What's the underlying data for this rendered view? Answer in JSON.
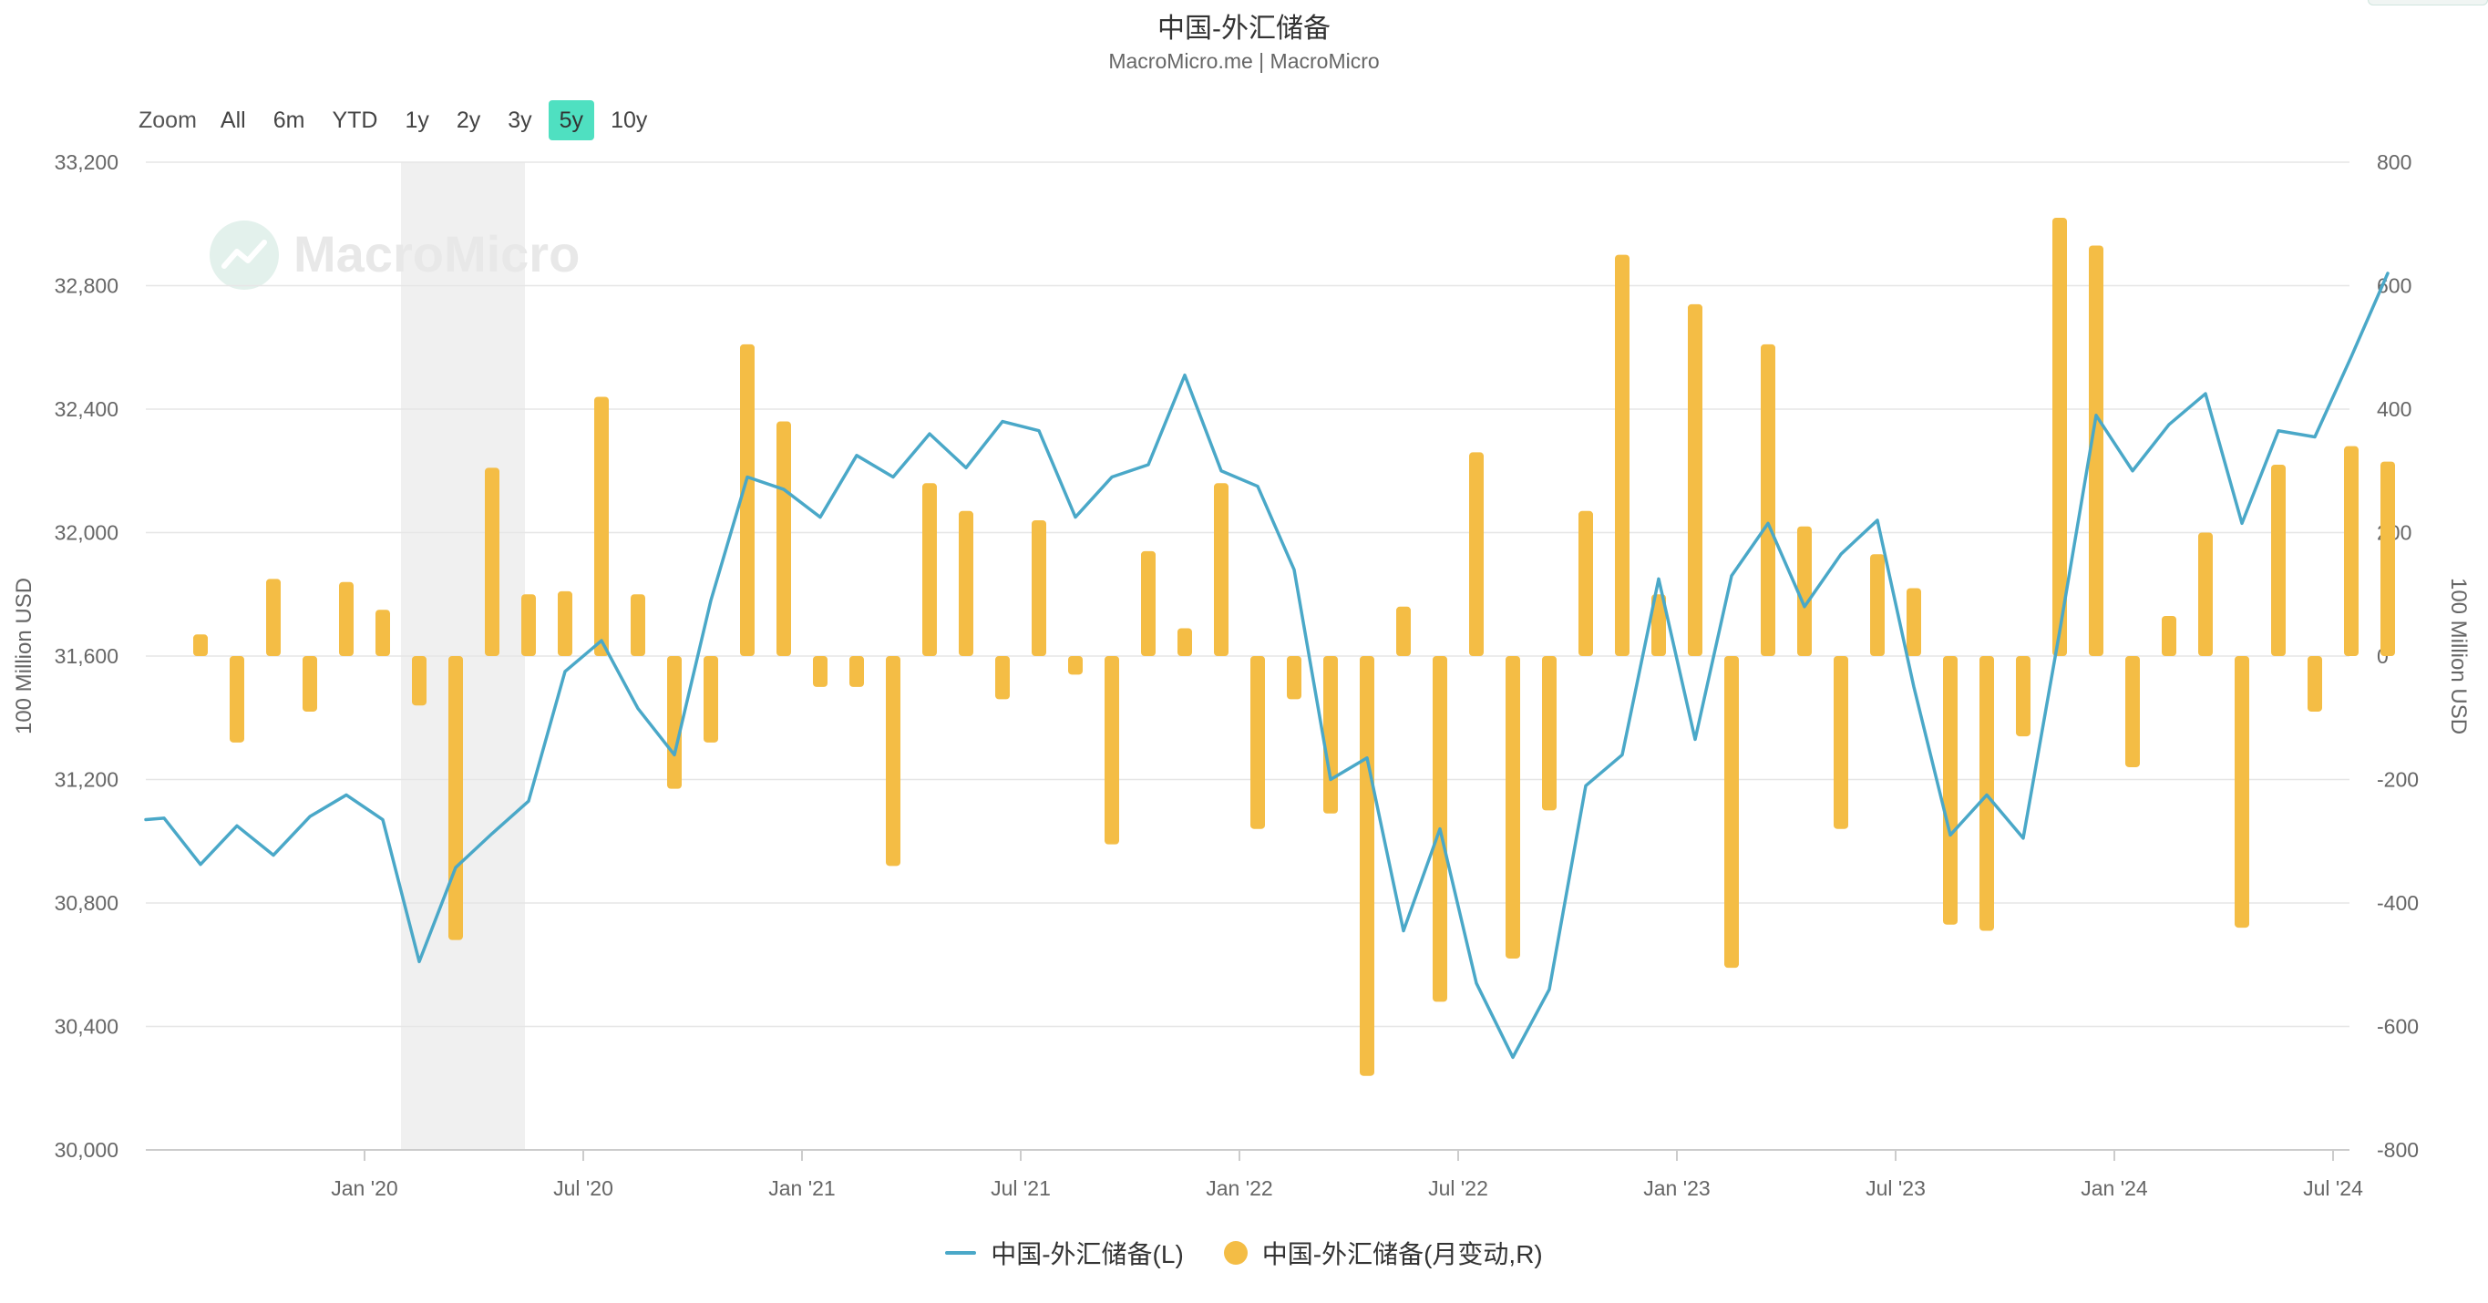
{
  "title": "中国-外汇储备",
  "subtitle": "MacroMicro.me | MacroMicro",
  "watermark": "MacroMicro",
  "range_selector": {
    "label": "Zoom",
    "options": [
      "All",
      "6m",
      "YTD",
      "1y",
      "2y",
      "3y",
      "5y",
      "10y"
    ],
    "active": "5y"
  },
  "colors": {
    "line": "#4aa8c8",
    "bar": "#f4bd45",
    "band": "#f0f0f0",
    "grid": "#e6e6e6",
    "active_range": "#4fe0c1"
  },
  "legend": [
    {
      "label": "中国-外汇储备(L)",
      "marker": "line",
      "color": "#4aa8c8"
    },
    {
      "label": "中国-外汇储备(月变动,R)",
      "marker": "dot",
      "color": "#f4bd45"
    }
  ],
  "chart_data": {
    "type": "bar+line",
    "x_start": "2019-07",
    "x_tick_labels": [
      "Jan '20",
      "Jul '20",
      "Jan '21",
      "Jul '21",
      "Jan '22",
      "Jul '22",
      "Jan '23",
      "Jul '23",
      "Jan '24",
      "Jul '24"
    ],
    "shaded_period": [
      "2020-02",
      "2020-04"
    ],
    "y_left": {
      "label": "100 Million USD",
      "range": [
        30000,
        33200
      ],
      "ticks": [
        30000,
        30400,
        30800,
        31200,
        31600,
        32000,
        32400,
        32800,
        33200
      ],
      "tick_labels": [
        "30,000",
        "30,400",
        "30,800",
        "31,200",
        "31,600",
        "32,000",
        "32,400",
        "32,800",
        "33,200"
      ]
    },
    "y_right": {
      "label": "100 Million USD",
      "range": [
        -800,
        800
      ],
      "ticks": [
        -800,
        -600,
        -400,
        -200,
        0,
        200,
        400,
        600,
        800
      ],
      "tick_labels": [
        "-800",
        "-600",
        "-400",
        "-200",
        "0",
        "200",
        "400",
        "600",
        "800"
      ]
    },
    "series": [
      {
        "name": "中国-外汇储备(L)",
        "type": "line",
        "axis": "left",
        "start_value": 31070,
        "values": [
          31075,
          30925,
          31050,
          30955,
          31080,
          31150,
          31070,
          30610,
          30915,
          31025,
          31130,
          31550,
          31650,
          31430,
          31280,
          31780,
          32180,
          32140,
          32050,
          32250,
          32180,
          32320,
          32210,
          32360,
          32330,
          32050,
          32180,
          32220,
          32510,
          32200,
          32150,
          31880,
          31200,
          31270,
          30710,
          31040,
          30540,
          30300,
          30520,
          31180,
          31280,
          31850,
          31330,
          31860,
          32030,
          31760,
          31930,
          32040,
          31500,
          31020,
          31150,
          31010,
          31680,
          32380,
          32200,
          32350,
          32450,
          32030,
          32330,
          32310,
          32570,
          32840
        ]
      },
      {
        "name": "中国-外汇储备(月变动,R)",
        "type": "bar",
        "axis": "right",
        "values": [
          35,
          -140,
          125,
          -90,
          120,
          75,
          -80,
          -460,
          305,
          100,
          105,
          420,
          100,
          -215,
          -140,
          505,
          380,
          -50,
          -50,
          -340,
          280,
          235,
          -70,
          220,
          -30,
          -305,
          170,
          45,
          280,
          -280,
          -70,
          -255,
          -680,
          80,
          -560,
          330,
          -490,
          -250,
          235,
          650,
          100,
          570,
          -505,
          505,
          210,
          -280,
          165,
          110,
          -435,
          -445,
          -130,
          710,
          665,
          -180,
          65,
          200,
          -440,
          310,
          -90,
          340,
          315
        ]
      }
    ]
  }
}
